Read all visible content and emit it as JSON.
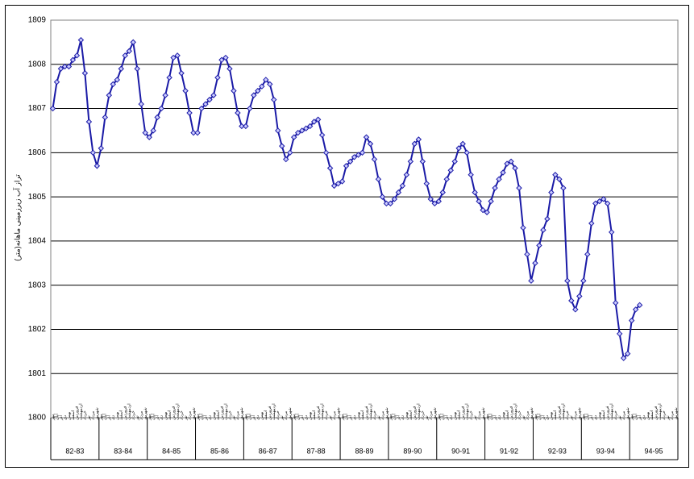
{
  "chart_data": {
    "type": "line",
    "y_label": "تراز آب زیرزمینی ماهانه(متر)",
    "groups": [
      "82-83",
      "83-84",
      "84-85",
      "85-86",
      "86-87",
      "87-88",
      "88-89",
      "89-90",
      "90-91",
      "91-92",
      "92-93",
      "93-94",
      "94-95"
    ],
    "months": [
      "مهر",
      "آبان",
      "آذر",
      "دی",
      "بهمن",
      "اسفند",
      "فروردین",
      "اردیبهشت",
      "خرداد",
      "تیر",
      "مرداد",
      "شهریور"
    ],
    "series": [
      {
        "color": "#1a1aa6",
        "values": [
          1807.0,
          1807.6,
          1807.9,
          1807.95,
          1807.95,
          1808.1,
          1808.2,
          1808.55,
          1807.8,
          1806.7,
          1806.0,
          1805.7,
          1806.1,
          1806.8,
          1807.3,
          1807.55,
          1807.65,
          1807.9,
          1808.2,
          1808.3,
          1808.5,
          1807.9,
          1807.1,
          1806.45,
          1806.35,
          1806.5,
          1806.8,
          1807.0,
          1807.3,
          1807.7,
          1808.15,
          1808.2,
          1807.8,
          1807.4,
          1806.9,
          1806.45,
          1806.45,
          1807.0,
          1807.1,
          1807.2,
          1807.3,
          1807.7,
          1808.1,
          1808.15,
          1807.9,
          1807.4,
          1806.9,
          1806.6,
          1806.6,
          1807.0,
          1807.3,
          1807.4,
          1807.5,
          1807.65,
          1807.55,
          1807.2,
          1806.5,
          1806.15,
          1805.85,
          1806.0,
          1806.35,
          1806.45,
          1806.5,
          1806.55,
          1806.6,
          1806.7,
          1806.75,
          1806.4,
          1806.0,
          1805.65,
          1805.25,
          1805.3,
          1805.35,
          1805.7,
          1805.8,
          1805.9,
          1805.95,
          1806.0,
          1806.35,
          1806.2,
          1805.85,
          1805.4,
          1805.0,
          1804.85,
          1804.85,
          1804.95,
          1805.1,
          1805.25,
          1805.5,
          1805.8,
          1806.2,
          1806.3,
          1805.8,
          1805.3,
          1804.95,
          1804.85,
          1804.9,
          1805.1,
          1805.4,
          1805.6,
          1805.8,
          1806.1,
          1806.2,
          1806.0,
          1805.5,
          1805.1,
          1804.9,
          1804.7,
          1804.65,
          1804.9,
          1805.2,
          1805.4,
          1805.55,
          1805.75,
          1805.8,
          1805.65,
          1805.2,
          1804.3,
          1803.7,
          1803.1,
          1803.5,
          1803.9,
          1804.25,
          1804.5,
          1805.1,
          1805.5,
          1805.4,
          1805.2,
          1803.1,
          1802.65,
          1802.45,
          1802.75,
          1803.1,
          1803.7,
          1804.4,
          1804.85,
          1804.9,
          1804.95,
          1804.85,
          1804.2,
          1802.6,
          1801.9,
          1801.35,
          1801.45,
          1802.2,
          1802.45,
          1802.55,
          null,
          null,
          null,
          null,
          null,
          null,
          null,
          null,
          null
        ]
      }
    ],
    "ylim": [
      1800,
      1809
    ],
    "yticks": [
      1800,
      1801,
      1802,
      1803,
      1804,
      1805,
      1806,
      1807,
      1808,
      1809
    ],
    "grid": true
  }
}
